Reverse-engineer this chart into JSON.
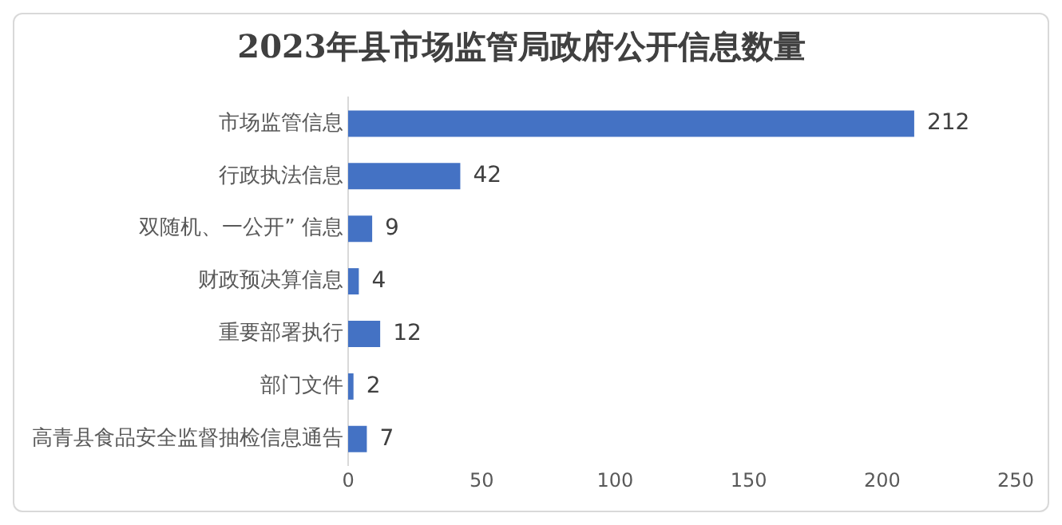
{
  "chart_data": {
    "type": "bar",
    "orientation": "horizontal",
    "title": "2023年县市场监管局政府公开信息数量",
    "categories": [
      "市场监管信息",
      "行政执法信息",
      "双随机、一公开” 信息",
      "财政预决算信息",
      "重要部署执行",
      "部门文件",
      "高青县食品安全监督抽检信息通告"
    ],
    "values": [
      212,
      42,
      9,
      4,
      12,
      2,
      7
    ],
    "color": "#4472c4",
    "data_labels": true,
    "xlim": [
      0,
      250
    ],
    "xticks": [
      0,
      50,
      100,
      150,
      200,
      250
    ],
    "grid": false,
    "legend": false
  }
}
